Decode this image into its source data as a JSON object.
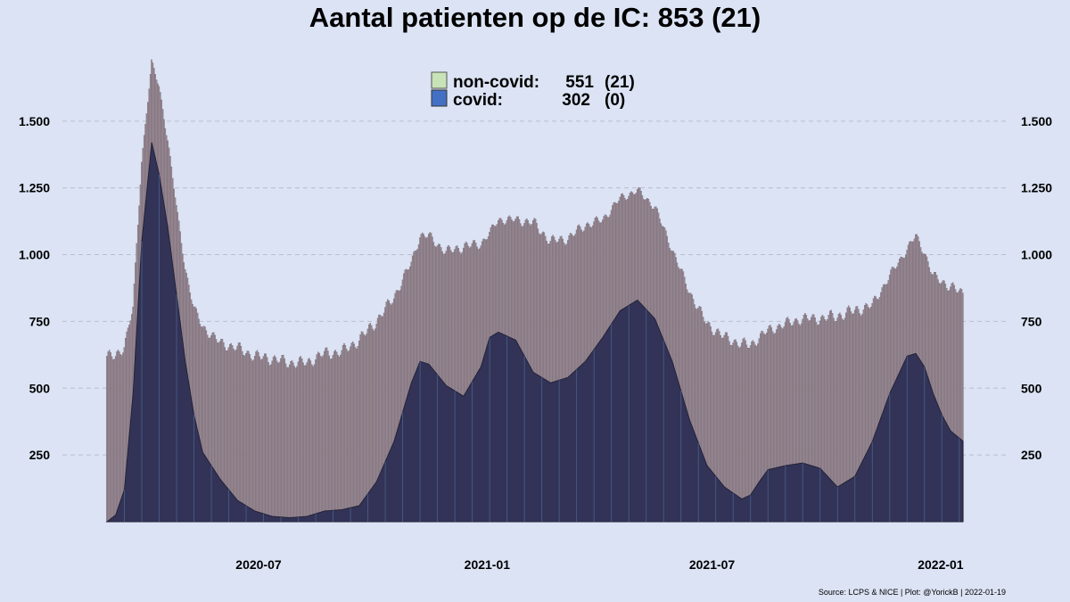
{
  "title": "Aantal patienten op de IC: 853  (21)",
  "source": "Source: LCPS & NICE | Plot: @YorickB |  2022-01-19",
  "legend": [
    {
      "label": "non-covid:",
      "value": "551",
      "change": "(21)",
      "color": "#c8e3b8"
    },
    {
      "label": "covid:",
      "value": "302",
      "change": "(0)",
      "color": "#4470c4"
    }
  ],
  "colors": {
    "background": "#dbe3f4",
    "noncovid_bar": "#a08c95",
    "noncovid_bar_edge": "#6e6470",
    "covid_area": "#333357",
    "covid_edge": "#222238",
    "grid": "#b9bfcc",
    "grid_250": "#e4b896"
  },
  "chart_data": {
    "type": "bar",
    "stacked": true,
    "x_unit": "date",
    "x_start": "2020-03-01",
    "x_end": "2022-01-19",
    "xticks": [
      "2020-07",
      "2021-01",
      "2021-07",
      "2022-01"
    ],
    "yticks": [
      "250",
      "500",
      "750",
      "1.000",
      "1.250",
      "1.500"
    ],
    "ytick_values": [
      250,
      500,
      750,
      1000,
      1250,
      1500
    ],
    "ylim": [
      0,
      1820
    ],
    "grid": true,
    "legend_position": "top-center",
    "series": [
      {
        "name": "covid",
        "points": [
          [
            "2020-03-01",
            0
          ],
          [
            "2020-03-08",
            25
          ],
          [
            "2020-03-15",
            120
          ],
          [
            "2020-03-22",
            480
          ],
          [
            "2020-03-29",
            1050
          ],
          [
            "2020-04-06",
            1420
          ],
          [
            "2020-04-12",
            1300
          ],
          [
            "2020-04-19",
            1100
          ],
          [
            "2020-04-26",
            850
          ],
          [
            "2020-05-03",
            600
          ],
          [
            "2020-05-10",
            400
          ],
          [
            "2020-05-17",
            260
          ],
          [
            "2020-05-31",
            160
          ],
          [
            "2020-06-14",
            80
          ],
          [
            "2020-06-28",
            40
          ],
          [
            "2020-07-12",
            20
          ],
          [
            "2020-07-26",
            15
          ],
          [
            "2020-08-09",
            20
          ],
          [
            "2020-08-23",
            40
          ],
          [
            "2020-09-06",
            45
          ],
          [
            "2020-09-20",
            60
          ],
          [
            "2020-10-04",
            150
          ],
          [
            "2020-10-18",
            300
          ],
          [
            "2020-11-01",
            520
          ],
          [
            "2020-11-08",
            600
          ],
          [
            "2020-11-15",
            590
          ],
          [
            "2020-11-29",
            510
          ],
          [
            "2020-12-13",
            470
          ],
          [
            "2020-12-27",
            580
          ],
          [
            "2021-01-03",
            690
          ],
          [
            "2021-01-10",
            710
          ],
          [
            "2021-01-24",
            680
          ],
          [
            "2021-02-07",
            560
          ],
          [
            "2021-02-21",
            520
          ],
          [
            "2021-03-07",
            540
          ],
          [
            "2021-03-21",
            600
          ],
          [
            "2021-04-04",
            690
          ],
          [
            "2021-04-18",
            790
          ],
          [
            "2021-05-02",
            830
          ],
          [
            "2021-05-16",
            760
          ],
          [
            "2021-05-30",
            600
          ],
          [
            "2021-06-13",
            380
          ],
          [
            "2021-06-27",
            210
          ],
          [
            "2021-07-11",
            130
          ],
          [
            "2021-07-25",
            85
          ],
          [
            "2021-08-01",
            100
          ],
          [
            "2021-08-08",
            150
          ],
          [
            "2021-08-15",
            195
          ],
          [
            "2021-08-29",
            210
          ],
          [
            "2021-09-12",
            220
          ],
          [
            "2021-09-26",
            200
          ],
          [
            "2021-10-10",
            130
          ],
          [
            "2021-10-24",
            170
          ],
          [
            "2021-11-07",
            300
          ],
          [
            "2021-11-21",
            480
          ],
          [
            "2021-12-05",
            620
          ],
          [
            "2021-12-12",
            630
          ],
          [
            "2021-12-19",
            580
          ],
          [
            "2021-12-26",
            480
          ],
          [
            "2022-01-02",
            400
          ],
          [
            "2022-01-09",
            340
          ],
          [
            "2022-01-19",
            302
          ]
        ]
      },
      {
        "name": "non-covid",
        "points": [
          [
            "2020-03-01",
            620
          ],
          [
            "2020-03-08",
            590
          ],
          [
            "2020-03-15",
            540
          ],
          [
            "2020-03-22",
            320
          ],
          [
            "2020-03-29",
            300
          ],
          [
            "2020-04-06",
            300
          ],
          [
            "2020-04-12",
            330
          ],
          [
            "2020-04-19",
            330
          ],
          [
            "2020-04-26",
            330
          ],
          [
            "2020-05-03",
            350
          ],
          [
            "2020-05-10",
            400
          ],
          [
            "2020-05-17",
            470
          ],
          [
            "2020-05-31",
            510
          ],
          [
            "2020-06-14",
            570
          ],
          [
            "2020-06-28",
            580
          ],
          [
            "2020-07-12",
            590
          ],
          [
            "2020-07-26",
            580
          ],
          [
            "2020-08-09",
            575
          ],
          [
            "2020-08-23",
            590
          ],
          [
            "2020-09-06",
            590
          ],
          [
            "2020-09-20",
            620
          ],
          [
            "2020-10-04",
            600
          ],
          [
            "2020-10-18",
            540
          ],
          [
            "2020-11-01",
            450
          ],
          [
            "2020-11-08",
            470
          ],
          [
            "2020-11-15",
            480
          ],
          [
            "2020-11-29",
            500
          ],
          [
            "2020-12-13",
            560
          ],
          [
            "2020-12-27",
            460
          ],
          [
            "2021-01-03",
            390
          ],
          [
            "2021-01-10",
            420
          ],
          [
            "2021-01-24",
            450
          ],
          [
            "2021-02-07",
            560
          ],
          [
            "2021-02-21",
            530
          ],
          [
            "2021-03-07",
            520
          ],
          [
            "2021-03-21",
            510
          ],
          [
            "2021-04-04",
            440
          ],
          [
            "2021-04-18",
            420
          ],
          [
            "2021-05-02",
            410
          ],
          [
            "2021-05-16",
            420
          ],
          [
            "2021-05-30",
            420
          ],
          [
            "2021-06-13",
            480
          ],
          [
            "2021-06-27",
            530
          ],
          [
            "2021-07-11",
            560
          ],
          [
            "2021-07-25",
            580
          ],
          [
            "2021-08-01",
            560
          ],
          [
            "2021-08-08",
            540
          ],
          [
            "2021-08-15",
            520
          ],
          [
            "2021-08-29",
            530
          ],
          [
            "2021-09-12",
            540
          ],
          [
            "2021-09-26",
            560
          ],
          [
            "2021-10-10",
            640
          ],
          [
            "2021-10-24",
            620
          ],
          [
            "2021-11-07",
            510
          ],
          [
            "2021-11-21",
            440
          ],
          [
            "2021-12-05",
            400
          ],
          [
            "2021-12-12",
            440
          ],
          [
            "2021-12-19",
            430
          ],
          [
            "2021-12-26",
            440
          ],
          [
            "2022-01-02",
            500
          ],
          [
            "2022-01-09",
            540
          ],
          [
            "2022-01-19",
            551
          ]
        ]
      }
    ]
  }
}
